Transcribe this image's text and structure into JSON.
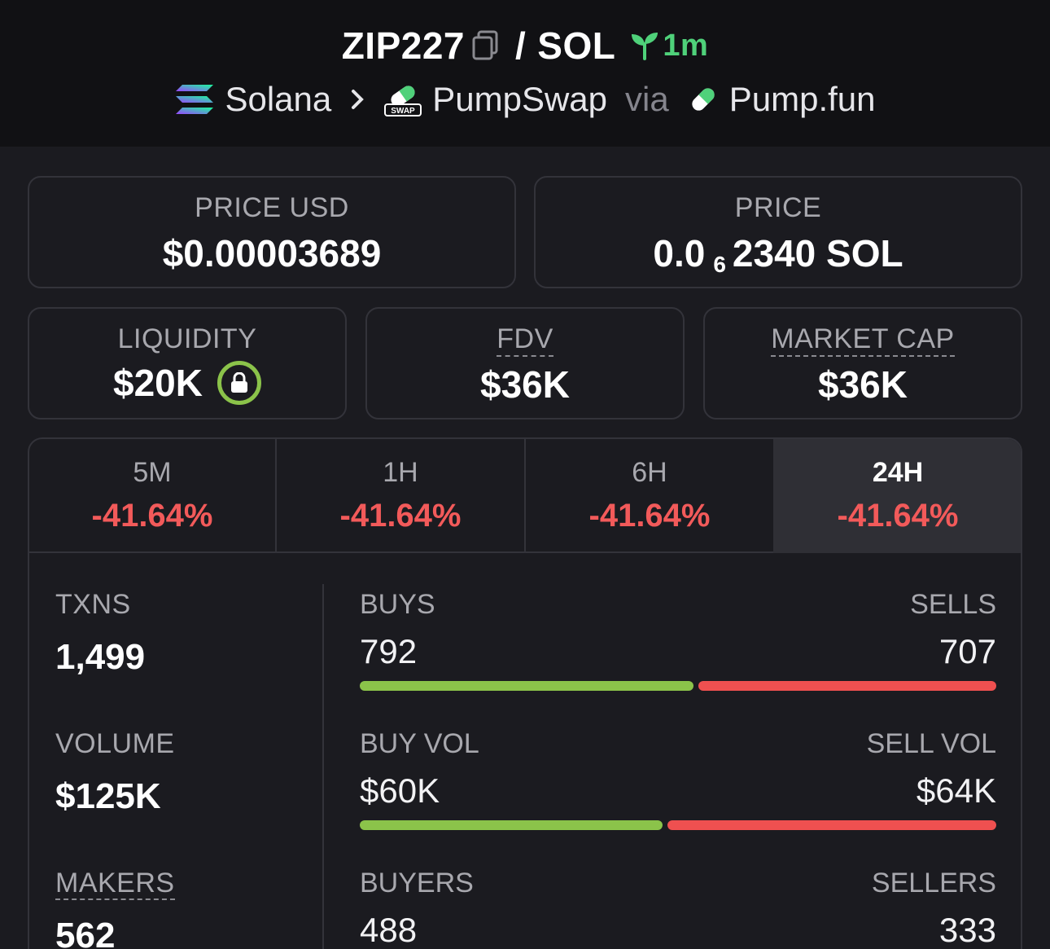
{
  "header": {
    "token_symbol": "ZIP227",
    "separator": "/",
    "quote_symbol": "SOL",
    "age": "1m",
    "chain": "Solana",
    "dex": "PumpSwap",
    "dex_badge": "SWAP",
    "via_text": "via",
    "launchpad": "Pump.fun",
    "colors": {
      "age_green": "#4fd17a"
    }
  },
  "price_usd": {
    "label": "PRICE USD",
    "value": "$0.00003689"
  },
  "price_native": {
    "label": "PRICE",
    "value_prefix": "0.0",
    "zero_count": "6",
    "value_suffix": "2340 SOL"
  },
  "liquidity": {
    "label": "LIQUIDITY",
    "value": "$20K",
    "locked": true
  },
  "fdv": {
    "label": "FDV",
    "value": "$36K"
  },
  "market_cap": {
    "label": "MARKET CAP",
    "value": "$36K"
  },
  "tabs": [
    {
      "label": "5M",
      "change": "-41.64%"
    },
    {
      "label": "1H",
      "change": "-41.64%"
    },
    {
      "label": "6H",
      "change": "-41.64%"
    },
    {
      "label": "24H",
      "change": "-41.64%",
      "active": true
    }
  ],
  "stats": {
    "txns": {
      "label": "TXNS",
      "value": "1,499"
    },
    "volume": {
      "label": "VOLUME",
      "value": "$125K"
    },
    "makers": {
      "label": "MAKERS",
      "value": "562"
    },
    "buys": {
      "label": "BUYS",
      "value": "792",
      "share": 0.528
    },
    "sells": {
      "label": "SELLS",
      "value": "707"
    },
    "buy_vol": {
      "label": "BUY VOL",
      "value": "$60K",
      "share": 0.48
    },
    "sell_vol": {
      "label": "SELL VOL",
      "value": "$64K"
    },
    "buyers": {
      "label": "BUYERS",
      "value": "488"
    },
    "sellers": {
      "label": "SELLERS",
      "value": "333"
    }
  },
  "colors": {
    "negative": "#f25a5a",
    "buy_bar": "#8bc34a",
    "sell_bar": "#ef5050"
  }
}
